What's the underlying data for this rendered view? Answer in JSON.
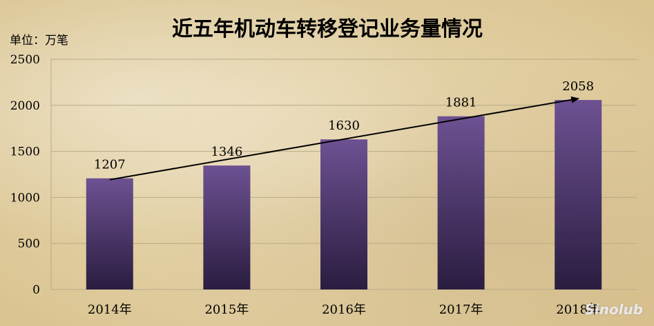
{
  "chart_data": {
    "type": "bar",
    "title": "近五年机动车转移登记业务量情况",
    "unit_label": "单位：万笔",
    "categories": [
      "2014年",
      "2015年",
      "2016年",
      "2017年",
      "2018年"
    ],
    "values": [
      1207,
      1346,
      1630,
      1881,
      2058
    ],
    "ylim": [
      0,
      2500
    ],
    "yticks": [
      0,
      500,
      1000,
      1500,
      2000,
      2500
    ],
    "grid": true,
    "trend_arrow": true
  },
  "colors": {
    "bar_top": "#6d5192",
    "bar_bottom": "#2a1d40",
    "grid": "#b8aa86",
    "text": "#000000"
  },
  "watermark": "Sinolub"
}
